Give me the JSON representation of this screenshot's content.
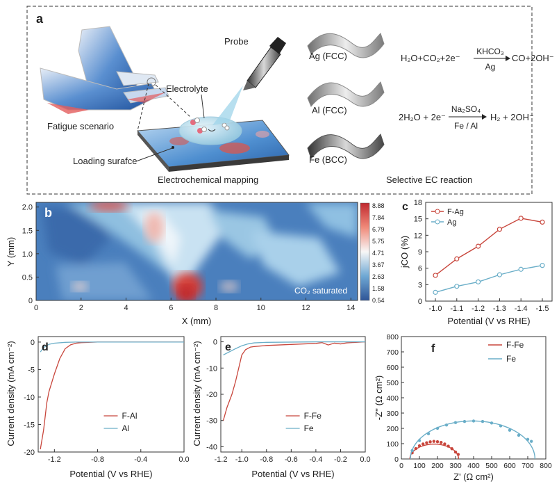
{
  "panel_a": {
    "label": "a",
    "probe": "Probe",
    "electrolyte": "Electrolyte",
    "fatigue": "Fatigue scenario",
    "loading": "Loading surafce",
    "mapping": "Electrochemical mapping",
    "selective": "Selective EC reaction",
    "metals": [
      "Ag (FCC)",
      "Al (FCC)",
      "Fe (BCC)"
    ],
    "reaction1": {
      "lhs": "H₂O+CO₂+2e⁻",
      "above": "KHCO₃",
      "below": "Ag",
      "rhs": "CO+2OH⁻"
    },
    "reaction2": {
      "lhs": "2H₂O + 2e⁻",
      "above": "Na₂SO₄",
      "below": "Fe / Al",
      "rhs": "H₂ + 2OH⁻"
    }
  },
  "colors": {
    "red": "#c8463c",
    "blue": "#6aaec8",
    "dark_blue": "#2a5a9a"
  },
  "chart_data": [
    {
      "id": "b",
      "type": "heatmap",
      "label": "b",
      "xlabel": "X (mm)",
      "ylabel": "Y (mm)",
      "xlim": [
        0,
        14.3
      ],
      "ylim": [
        0,
        2.1
      ],
      "xticks": [
        "0",
        "2",
        "4",
        "6",
        "8",
        "10",
        "12",
        "14"
      ],
      "yticks": [
        "0",
        "0.5",
        "1.0",
        "1.5",
        "2.0"
      ],
      "colorbar": [
        "8.88",
        "7.84",
        "6.79",
        "5.75",
        "4.71",
        "3.67",
        "2.63",
        "1.58",
        "0.54"
      ],
      "annotation": "CO₂ saturated"
    },
    {
      "id": "c",
      "type": "line",
      "label": "c",
      "xlabel": "Potential (V vs RHE)",
      "ylabel": "jCO (%)",
      "categories": [
        "-1.0",
        "-1.1",
        "-1.2",
        "-1.3",
        "-1.4",
        "-1.5"
      ],
      "yticks": [
        "0",
        "3",
        "6",
        "9",
        "12",
        "15",
        "18"
      ],
      "ylim": [
        0,
        18
      ],
      "legend": "top-left",
      "series": [
        {
          "name": "F-Ag",
          "values": [
            4.7,
            7.7,
            10.0,
            13.1,
            15.1,
            14.4
          ]
        },
        {
          "name": "Ag",
          "values": [
            1.6,
            2.7,
            3.5,
            4.8,
            5.8,
            6.5
          ]
        }
      ]
    },
    {
      "id": "d",
      "type": "line",
      "label": "d",
      "xlabel": "Potential (V vs RHE)",
      "ylabel": "Current density (mA cm⁻²)",
      "xlim": [
        -1.35,
        0.0
      ],
      "ylim": [
        -20,
        1
      ],
      "xticks": [
        "-1.2",
        "-0.8",
        "-0.4",
        "0.0"
      ],
      "yticks": [
        "0",
        "-5",
        "-10",
        "-15",
        "-20"
      ],
      "legend": "bottom-right",
      "series": [
        {
          "name": "F-Al",
          "x": [
            -1.33,
            -1.3,
            -1.27,
            -1.25,
            -1.2,
            -1.15,
            -1.1,
            -1.05,
            -1.0,
            -0.95,
            -0.8,
            -0.4,
            0.0
          ],
          "y": [
            -19.5,
            -16.0,
            -11.0,
            -9.0,
            -5.8,
            -3.0,
            -1.2,
            -0.5,
            -0.2,
            -0.1,
            0.0,
            0.0,
            0.0
          ]
        },
        {
          "name": "Al",
          "x": [
            -1.33,
            -1.3,
            -1.25,
            -1.2,
            -1.1,
            -1.0,
            -0.8,
            -0.4,
            0.0
          ],
          "y": [
            -1.8,
            -1.0,
            -0.4,
            -0.2,
            -0.05,
            0.0,
            0.0,
            0.0,
            0.0
          ]
        }
      ]
    },
    {
      "id": "e",
      "type": "line",
      "label": "e",
      "xlabel": "Potential (V vs RHE)",
      "ylabel": "Current density (mA cm⁻²)",
      "xlim": [
        -1.17,
        0.0
      ],
      "ylim": [
        -42,
        2
      ],
      "xticks": [
        "-1.2",
        "-1.0",
        "-0.8",
        "-0.6",
        "-0.4",
        "-0.2",
        "0.0"
      ],
      "yticks": [
        "0",
        "-10",
        "-20",
        "-30",
        "-40"
      ],
      "legend": "bottom-right",
      "series": [
        {
          "name": "F-Fe",
          "x": [
            -1.15,
            -1.12,
            -1.08,
            -1.05,
            -1.02,
            -1.0,
            -0.97,
            -0.93,
            -0.9,
            -0.85,
            -0.8,
            -0.6,
            -0.4,
            -0.35,
            -0.3,
            -0.25,
            -0.2,
            -0.15,
            0.0
          ],
          "y": [
            -30.0,
            -25.0,
            -20.0,
            -15.0,
            -9.0,
            -5.0,
            -3.0,
            -2.0,
            -1.8,
            -1.6,
            -1.4,
            -1.0,
            -0.6,
            -0.3,
            -1.2,
            -0.5,
            -0.8,
            -0.4,
            0.0
          ]
        },
        {
          "name": "Fe",
          "x": [
            -1.15,
            -1.1,
            -1.05,
            -1.0,
            -0.95,
            -0.9,
            -0.8,
            -0.6,
            -0.4,
            -0.2,
            0.0
          ],
          "y": [
            -5.0,
            -3.8,
            -2.6,
            -1.5,
            -0.8,
            -0.4,
            -0.2,
            -0.1,
            0.0,
            0.0,
            0.0
          ]
        }
      ]
    },
    {
      "id": "f",
      "type": "scatter",
      "label": "f",
      "xlabel": "Z' (Ω cm²)",
      "ylabel": "-Z'' (Ω cm²)",
      "xlim": [
        0,
        800
      ],
      "ylim": [
        0,
        800
      ],
      "xticks": [
        "0",
        "100",
        "200",
        "300",
        "400",
        "500",
        "600",
        "700",
        "800"
      ],
      "yticks": [
        "0",
        "100",
        "200",
        "300",
        "400",
        "500",
        "600",
        "700",
        "800"
      ],
      "legend": "top-right",
      "series": [
        {
          "name": "F-Fe",
          "center": 182,
          "radius": 135,
          "x": [
            60,
            80,
            100,
            120,
            140,
            160,
            180,
            200,
            220,
            240,
            260,
            280,
            300,
            315
          ],
          "y": [
            40,
            68,
            86,
            98,
            106,
            112,
            115,
            113,
            108,
            98,
            84,
            67,
            45,
            30
          ]
        },
        {
          "name": "Fe",
          "center": 395,
          "radius": 345,
          "x": [
            60,
            100,
            150,
            200,
            250,
            300,
            350,
            400,
            450,
            500,
            550,
            600,
            650,
            700,
            720
          ],
          "y": [
            55,
            120,
            165,
            200,
            222,
            238,
            245,
            248,
            245,
            235,
            216,
            188,
            155,
            128,
            115
          ]
        }
      ]
    }
  ]
}
